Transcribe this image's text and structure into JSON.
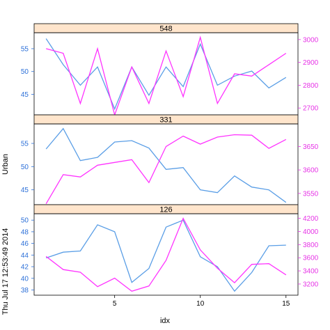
{
  "colors": {
    "left_axis": "#2b6fd8",
    "right_axis": "#e633e6",
    "series_left": "#5a9ee6",
    "series_right": "#ff33ff",
    "strip_bg": "#ffe5cc",
    "frame": "#000000"
  },
  "chart_data": {
    "type": "line",
    "xlabel": "idx",
    "ylabel": "Urban",
    "timestamp": "Thu Jul 17 12:53:49 2014",
    "x": [
      1,
      2,
      3,
      4,
      5,
      6,
      7,
      8,
      9,
      10,
      11,
      12,
      13,
      14,
      15
    ],
    "xlim": [
      0.3,
      15.7
    ],
    "xticks": [
      5,
      10,
      15
    ],
    "panels": [
      {
        "strip": "548",
        "left": {
          "ylim": [
            40.5,
            58.5
          ],
          "ticks": [
            45,
            50,
            55
          ],
          "values": [
            57.2,
            51.5,
            47.0,
            51.0,
            41.8,
            51.0,
            44.8,
            51.0,
            46.7,
            56.0,
            47.0,
            49.0,
            50.1,
            46.4,
            48.7
          ]
        },
        "right": {
          "ylim": [
            2670,
            3030
          ],
          "ticks": [
            2700,
            2800,
            2900,
            3000
          ],
          "values": [
            2960,
            2940,
            2720,
            2960,
            2670,
            2880,
            2720,
            2950,
            2750,
            3010,
            2720,
            2850,
            2840,
            2890,
            2940
          ]
        }
      },
      {
        "strip": "331",
        "left": {
          "ylim": [
            41.8,
            59.2
          ],
          "ticks": [
            45,
            50,
            55
          ],
          "values": [
            53.8,
            58.2,
            51.3,
            52.0,
            55.3,
            55.6,
            54.0,
            49.4,
            49.8,
            45.0,
            44.4,
            48.0,
            45.6,
            45.0,
            42.3
          ]
        },
        "right": {
          "ylim": [
            3526,
            3698
          ],
          "ticks": [
            3550,
            3600,
            3650
          ],
          "values": [
            3528,
            3590,
            3585,
            3610,
            3616,
            3622,
            3573,
            3650,
            3672,
            3655,
            3670,
            3675,
            3674,
            3646,
            3665
          ]
        }
      },
      {
        "strip": "126",
        "left": {
          "ylim": [
            37.1,
            51.1
          ],
          "ticks": [
            38,
            40,
            42,
            44,
            46,
            48,
            50
          ],
          "values": [
            43.5,
            44.5,
            44.7,
            49.2,
            48.0,
            39.3,
            41.7,
            48.8,
            50.0,
            43.7,
            42.0,
            37.8,
            41.0,
            45.6,
            45.7
          ]
        },
        "right": {
          "ylim": [
            3030,
            4270
          ],
          "ticks": [
            3200,
            3400,
            3600,
            3800,
            4000,
            4200
          ],
          "values": [
            3620,
            3420,
            3380,
            3160,
            3290,
            3090,
            3170,
            3560,
            4200,
            3720,
            3440,
            3220,
            3500,
            3510,
            3340
          ]
        }
      }
    ]
  }
}
